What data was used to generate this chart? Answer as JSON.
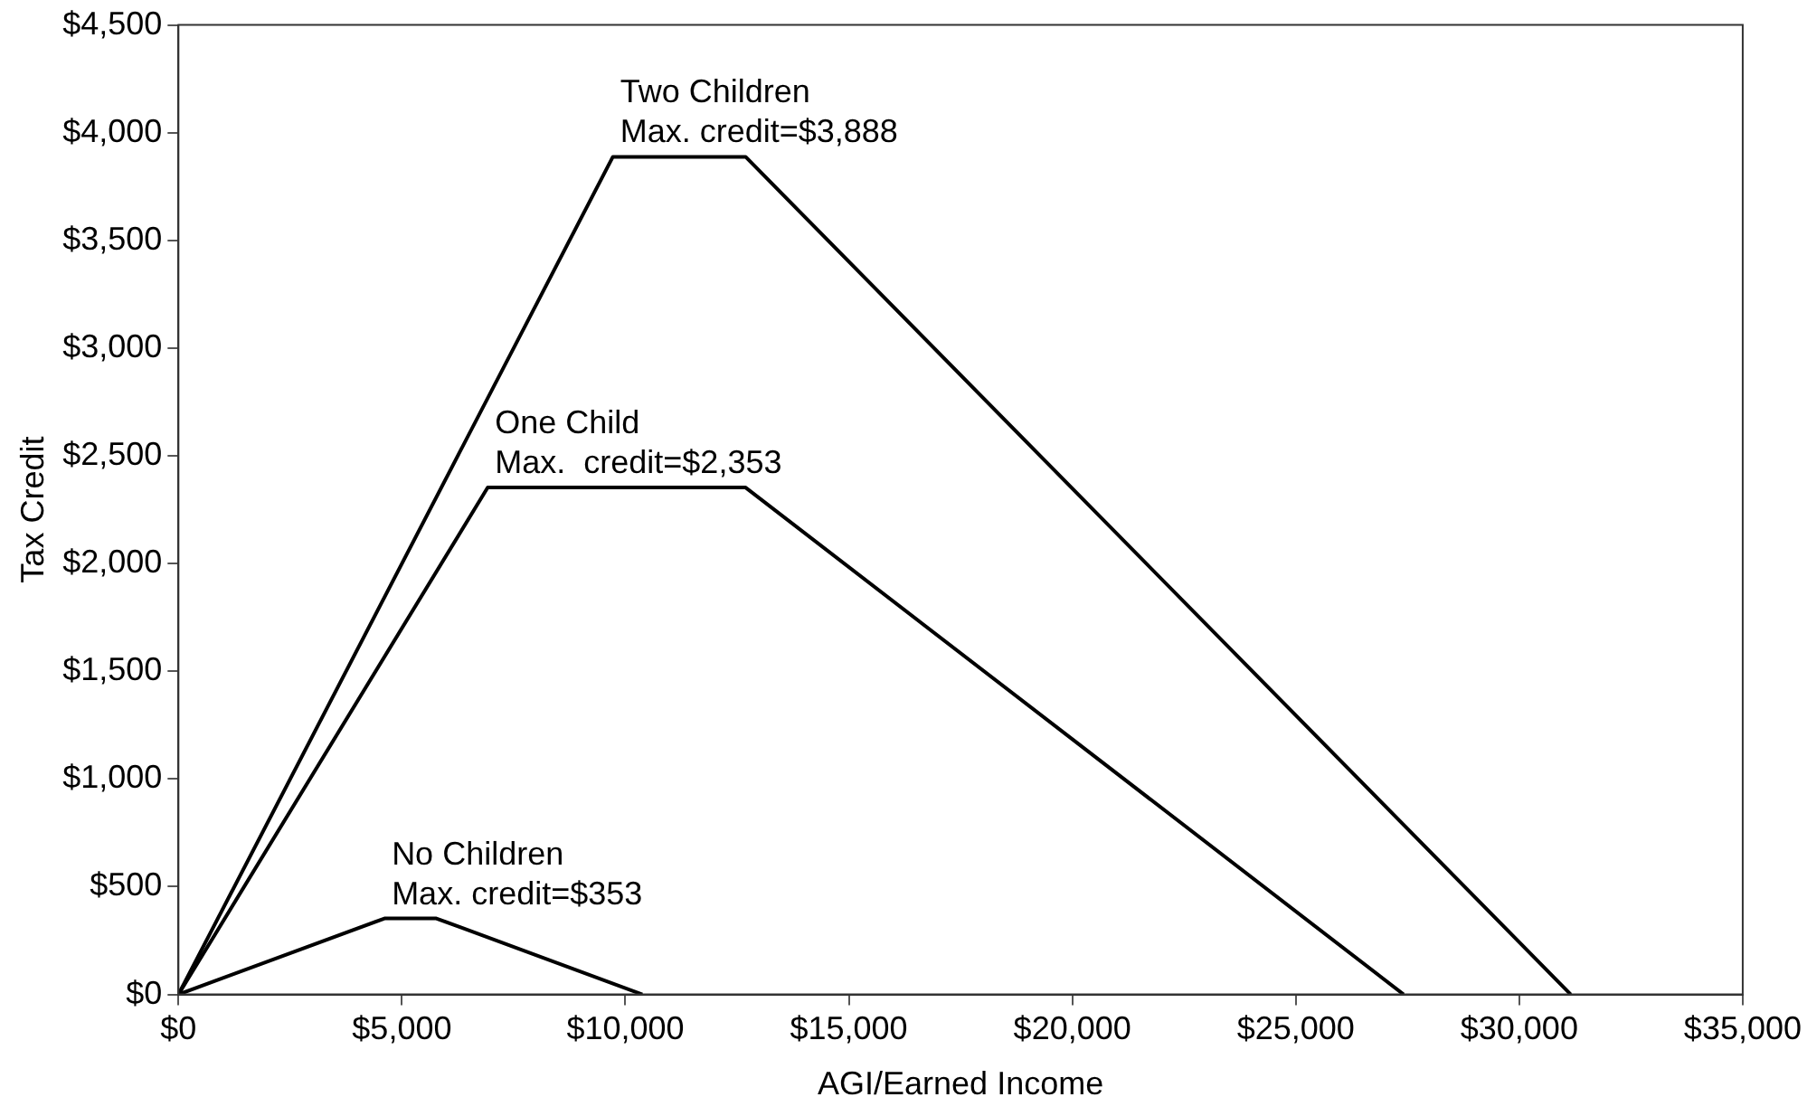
{
  "chart_data": {
    "type": "line",
    "xlabel": "AGI/Earned Income",
    "ylabel": "Tax Credit",
    "xlim": [
      0,
      35000
    ],
    "ylim": [
      0,
      4500
    ],
    "xticks": [
      {
        "value": 0,
        "label": "$0"
      },
      {
        "value": 5000,
        "label": "$5,000"
      },
      {
        "value": 10000,
        "label": "$10,000"
      },
      {
        "value": 15000,
        "label": "$15,000"
      },
      {
        "value": 20000,
        "label": "$20,000"
      },
      {
        "value": 25000,
        "label": "$25,000"
      },
      {
        "value": 30000,
        "label": "$30,000"
      },
      {
        "value": 35000,
        "label": "$35,000"
      }
    ],
    "yticks": [
      {
        "value": 0,
        "label": "$0"
      },
      {
        "value": 500,
        "label": "$500"
      },
      {
        "value": 1000,
        "label": "$1,000"
      },
      {
        "value": 1500,
        "label": "$1,500"
      },
      {
        "value": 2000,
        "label": "$2,000"
      },
      {
        "value": 2500,
        "label": "$2,500"
      },
      {
        "value": 3000,
        "label": "$3,000"
      },
      {
        "value": 3500,
        "label": "$3,500"
      },
      {
        "value": 4000,
        "label": "$4,000"
      },
      {
        "value": 4500,
        "label": "$4,500"
      }
    ],
    "series": [
      {
        "color": "#000000",
        "x": [
          0,
          9720,
          12690,
          31152
        ],
        "values": [
          0,
          3888,
          3888,
          0
        ]
      },
      {
        "color": "#000000",
        "x": [
          0,
          6920,
          12690,
          27413
        ],
        "values": [
          0,
          2353,
          2353,
          0
        ]
      },
      {
        "color": "#000000",
        "x": [
          0,
          4610,
          5770,
          10380
        ],
        "values": [
          0,
          353,
          353,
          0
        ]
      }
    ],
    "annotations": [
      {
        "text": "Two Children\nMax. credit=$3,888",
        "x": 9720,
        "y": 3888
      },
      {
        "text": "One Child\nMax.  credit=$2,353",
        "x": 6920,
        "y": 2353
      },
      {
        "text": "No Children\nMax. credit=$353",
        "x": 4610,
        "y": 353
      }
    ],
    "grid": false,
    "legend": false,
    "marker": "none",
    "line_style": "solid"
  }
}
